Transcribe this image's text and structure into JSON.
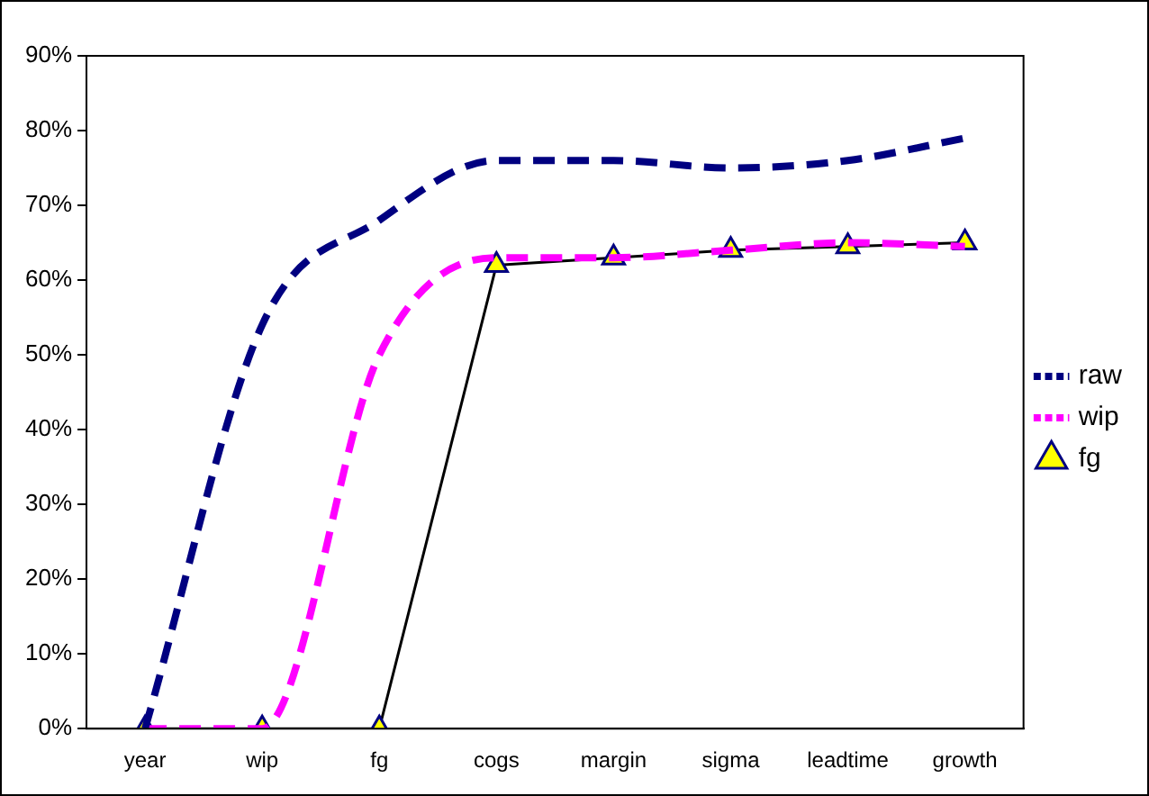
{
  "chart_data": {
    "type": "line",
    "categories": [
      "year",
      "wip",
      "fg",
      "cogs",
      "margin",
      "sigma",
      "leadtime",
      "growth"
    ],
    "series": [
      {
        "name": "raw",
        "color": "#000080",
        "values": [
          0,
          54,
          68,
          76,
          76,
          75,
          76,
          79
        ],
        "line_style": "dashed",
        "marker": "none"
      },
      {
        "name": "wip",
        "color": "#ff00ff",
        "values": [
          0,
          0,
          50,
          63,
          63,
          64,
          65,
          64.5
        ],
        "line_style": "dashed",
        "marker": "none"
      },
      {
        "name": "fg",
        "color": "#000000",
        "values": [
          0,
          0,
          0,
          62,
          63,
          64,
          64.5,
          65
        ],
        "line_style": "solid",
        "marker": "triangle"
      }
    ],
    "ylim": [
      0,
      90
    ],
    "yticks": [
      {
        "value": 0,
        "label": "0%"
      },
      {
        "value": 10,
        "label": "10%"
      },
      {
        "value": 20,
        "label": "20%"
      },
      {
        "value": 30,
        "label": "30%"
      },
      {
        "value": 40,
        "label": "40%"
      },
      {
        "value": 50,
        "label": "50%"
      },
      {
        "value": 60,
        "label": "60%"
      },
      {
        "value": 70,
        "label": "70%"
      },
      {
        "value": 80,
        "label": "80%"
      },
      {
        "value": 90,
        "label": "90%"
      }
    ],
    "grid": false,
    "legend": "right"
  }
}
